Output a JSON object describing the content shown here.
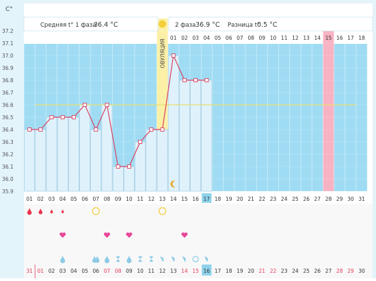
{
  "header": {
    "phase1_label": "Средняя t° 1 фаза",
    "phase1_value": "36.4 °С",
    "phase2_label": "2 фаза",
    "phase2_value": "36.9 °С",
    "diff_label": "Разница t°",
    "diff_value": "0.5 °С"
  },
  "unit_label": "C°",
  "ovulation_label": "ОВУЛЯЦИЯ",
  "colors": {
    "plot_bg": "#9fdcf4",
    "bar_fill": "#dff2fc",
    "bar_stroke": "#9cc6de",
    "line": "#d9415f",
    "ovulation": "#fbf0a6",
    "highlight_day": "#f7b3c3",
    "coverline": "#e8e070",
    "drop_red": "#e8334b",
    "heart": "#e8479a",
    "drop_blue": "#8ccbe6",
    "ring": "#f2cf36",
    "weekend_red": "#e23b57",
    "today_box": "#8ed3ec"
  },
  "post_ovulation_days": [
    "01",
    "02",
    "03",
    "04",
    "05",
    "06",
    "07",
    "08",
    "09",
    "10",
    "11",
    "12",
    "13",
    "14",
    "15",
    "16",
    "17",
    "18"
  ],
  "dpo_highlight_index": 14,
  "chart_data": {
    "type": "line",
    "ylabel": "C°",
    "ylim": [
      35.9,
      37.2
    ],
    "y_ticks": [
      "35.9",
      "36.0",
      "36.1",
      "36.2",
      "36.3",
      "36.4",
      "36.5",
      "36.6",
      "36.7",
      "36.8",
      "36.9",
      "37.0",
      "37.1",
      "37.2"
    ],
    "cycle_days": [
      "01",
      "02",
      "03",
      "04",
      "05",
      "06",
      "07",
      "08",
      "09",
      "10",
      "11",
      "12",
      "13",
      "14",
      "15",
      "16",
      "17",
      "18",
      "19",
      "20",
      "21",
      "22",
      "23",
      "24",
      "25",
      "26",
      "27",
      "28",
      "29",
      "30",
      "31"
    ],
    "series": [
      {
        "values": [
          36.4,
          36.4,
          36.5,
          36.5,
          36.5,
          36.6,
          36.4,
          36.6,
          36.1,
          36.1,
          36.3,
          36.4,
          36.4,
          37.0,
          36.8,
          36.8,
          36.8
        ]
      }
    ],
    "coverline": 36.6,
    "ovulation_day_index": 12,
    "today_index": 16,
    "highlight_day_index": 27,
    "suns": [
      12
    ],
    "moons": [
      13
    ],
    "markers": {
      "blood_drops": [
        {
          "day": 0,
          "size": 1.0
        },
        {
          "day": 1,
          "size": 0.85
        },
        {
          "day": 2,
          "size": 0.6
        },
        {
          "day": 3,
          "size": 0.55
        }
      ],
      "rings": [
        6,
        12
      ],
      "hearts": [
        3,
        7,
        9,
        14
      ],
      "mucus": [
        {
          "day": 3,
          "icon": "drop"
        },
        {
          "day": 6,
          "icon": "drop-pair"
        },
        {
          "day": 7,
          "icon": "drop"
        },
        {
          "day": 8,
          "icon": "hourglass"
        },
        {
          "day": 9,
          "icon": "drop"
        },
        {
          "day": 10,
          "icon": "hourglass"
        },
        {
          "day": 11,
          "icon": "hourglass"
        },
        {
          "day": 12,
          "icon": "wave"
        },
        {
          "day": 13,
          "icon": "wave"
        },
        {
          "day": 14,
          "icon": "wave"
        },
        {
          "day": 15,
          "icon": "ring"
        },
        {
          "day": 16,
          "icon": "wave"
        }
      ]
    },
    "calendar_dates": [
      {
        "d": "31",
        "red": true
      },
      {
        "d": "01",
        "red": true
      },
      {
        "d": "02",
        "red": false
      },
      {
        "d": "03",
        "red": false
      },
      {
        "d": "04",
        "red": false
      },
      {
        "d": "05",
        "red": false
      },
      {
        "d": "06",
        "red": false
      },
      {
        "d": "07",
        "red": true
      },
      {
        "d": "08",
        "red": true
      },
      {
        "d": "09",
        "red": false
      },
      {
        "d": "10",
        "red": false
      },
      {
        "d": "11",
        "red": false
      },
      {
        "d": "12",
        "red": false
      },
      {
        "d": "13",
        "red": false
      },
      {
        "d": "14",
        "red": true
      },
      {
        "d": "15",
        "red": true
      },
      {
        "d": "16",
        "red": false
      },
      {
        "d": "17",
        "red": false
      },
      {
        "d": "18",
        "red": false
      },
      {
        "d": "19",
        "red": false
      },
      {
        "d": "20",
        "red": false
      },
      {
        "d": "21",
        "red": true
      },
      {
        "d": "22",
        "red": true
      },
      {
        "d": "23",
        "red": false
      },
      {
        "d": "24",
        "red": false
      },
      {
        "d": "25",
        "red": false
      },
      {
        "d": "26",
        "red": false
      },
      {
        "d": "27",
        "red": false
      },
      {
        "d": "28",
        "red": true
      },
      {
        "d": "29",
        "red": true
      },
      {
        "d": "30",
        "red": false
      }
    ]
  }
}
